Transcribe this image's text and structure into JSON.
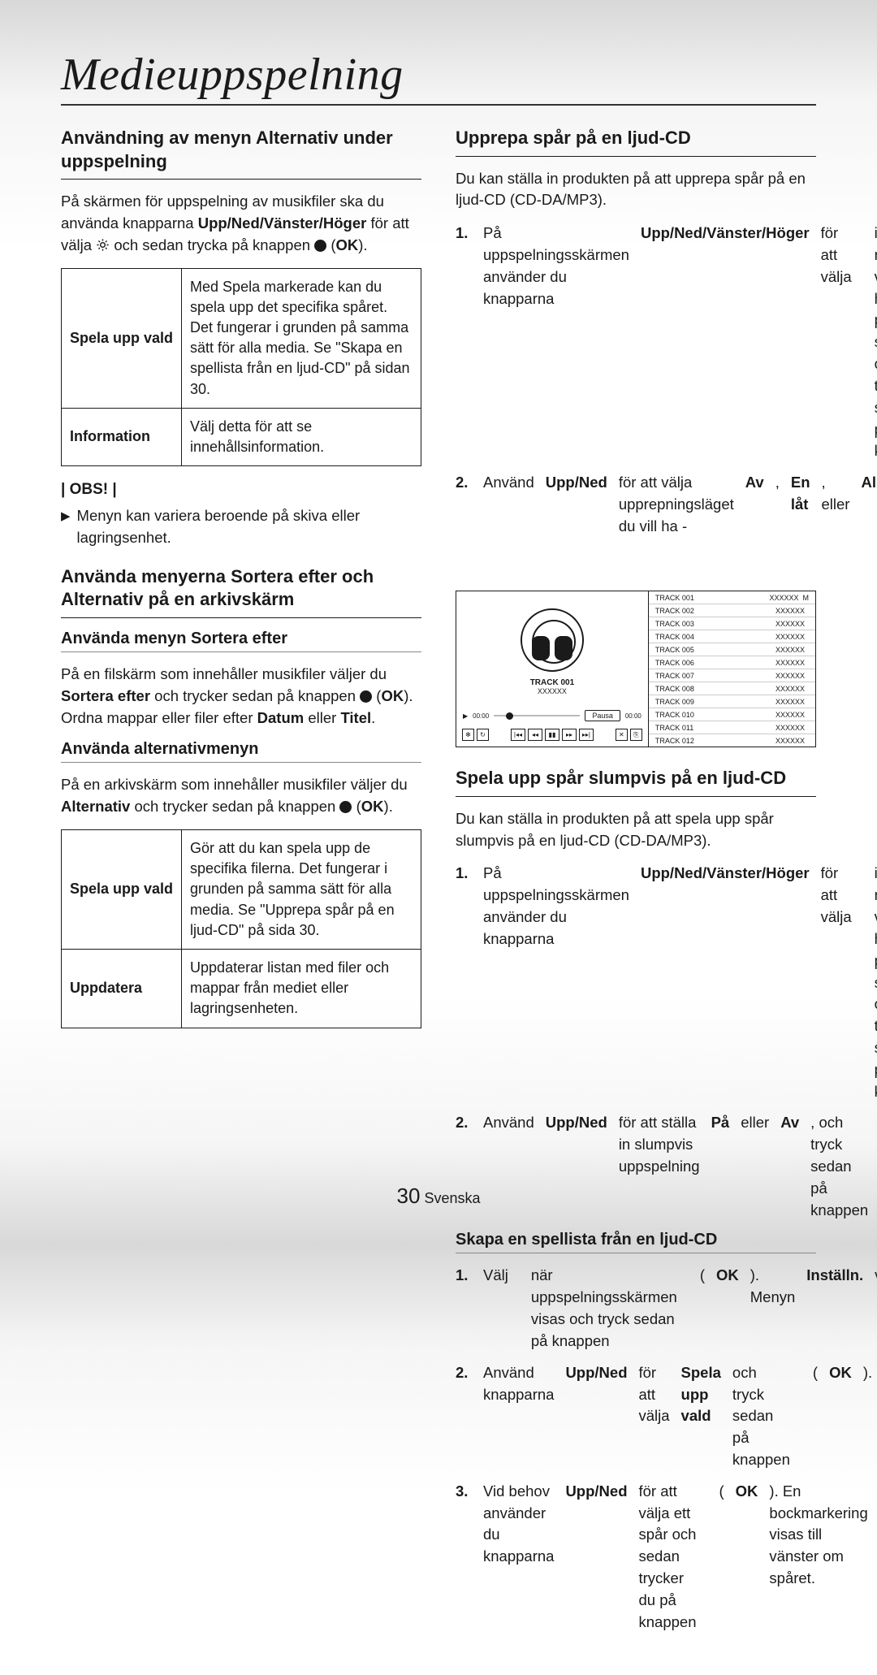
{
  "page": {
    "title": "Medieuppspelning",
    "number": "30",
    "lang_label": "Svenska"
  },
  "left": {
    "sec1_title": "Användning av menyn Alternativ under uppspelning",
    "sec1_para": "På skärmen för uppspelning av musikfiler ska du använda knapparna <b>Upp/Ned/Vänster/Höger</b> för att välja {gear} och sedan trycka på knappen {ok} (<b>OK</b>).",
    "table1": [
      {
        "k": "Spela upp vald",
        "v": "Med Spela markerade kan du spela upp det specifika spåret. Det fungerar i grunden på samma sätt för alla media. Se \"Skapa en spellista från en ljud-CD\" på sidan 30."
      },
      {
        "k": "Information",
        "v": "Välj detta för att se innehållsinformation."
      }
    ],
    "obs": "| OBS! |",
    "obs_item": "Menyn kan variera beroende på skiva eller lagringsenhet.",
    "sec2_title": "Använda menyerna Sortera efter och Alternativ på en arkivskärm",
    "sub1": "Använda menyn Sortera efter",
    "sub1_para": "På en filskärm som innehåller musikfiler väljer du <b>Sortera efter</b> och trycker sedan på knappen {ok} (<b>OK</b>). Ordna mappar eller filer efter <b>Datum</b> eller <b>Titel</b>.",
    "sub2": "Använda alternativmenyn",
    "sub2_para": "På en arkivskärm som innehåller musikfiler väljer du <b>Alternativ</b> och trycker sedan på knappen {ok} (<b>OK</b>).",
    "table2": [
      {
        "k": "Spela upp vald",
        "v": "Gör att du kan spela upp de specifika filerna. Det fungerar i grunden på samma sätt för alla media. Se \"Upprepa spår på en ljud-CD\" på sida 30."
      },
      {
        "k": "Uppdatera",
        "v": "Uppdaterar listan med filer och mappar från mediet eller lagringsenheten."
      }
    ]
  },
  "right": {
    "sec1_title": "Upprepa spår på en ljud-CD",
    "sec1_para": "Du kan ställa in produkten på att upprepa spår på en ljud-CD (CD-DA/MP3).",
    "sec1_steps": [
      "På uppspelningsskärmen använder du knapparna <b>Upp/Ned/Vänster/Höger</b> för att välja {repeat} i det nedre vänstra hörnet på skärmen och trycker sedan på knappen {ok} (<b>OK</b>).",
      "Använd <b>Upp/Ned</b> för att välja upprepningsläget du vill ha - <b>Av</b>, <b>En låt</b>, eller <b>Alla</b> - och tryck sedan på knappen {ok} (<b>OK</b>)."
    ],
    "player": {
      "now_track": "TRACK 001",
      "now_sub": "XXXXXX",
      "t_left": "00:00",
      "t_right": "00:00",
      "pause": "Pausa",
      "tracks": [
        {
          "n": "TRACK 001",
          "v": "XXXXXX",
          "m": "M"
        },
        {
          "n": "TRACK 002",
          "v": "XXXXXX",
          "m": ""
        },
        {
          "n": "TRACK 003",
          "v": "XXXXXX",
          "m": ""
        },
        {
          "n": "TRACK 004",
          "v": "XXXXXX",
          "m": ""
        },
        {
          "n": "TRACK 005",
          "v": "XXXXXX",
          "m": ""
        },
        {
          "n": "TRACK 006",
          "v": "XXXXXX",
          "m": ""
        },
        {
          "n": "TRACK 007",
          "v": "XXXXXX",
          "m": ""
        },
        {
          "n": "TRACK 008",
          "v": "XXXXXX",
          "m": ""
        },
        {
          "n": "TRACK 009",
          "v": "XXXXXX",
          "m": ""
        },
        {
          "n": "TRACK 010",
          "v": "XXXXXX",
          "m": ""
        },
        {
          "n": "TRACK 011",
          "v": "XXXXXX",
          "m": ""
        },
        {
          "n": "TRACK 012",
          "v": "XXXXXX",
          "m": ""
        }
      ]
    },
    "sec2_title": "Spela upp spår slumpvis på en ljud-CD",
    "sec2_para": "Du kan ställa in produkten på att spela upp spår slumpvis på en ljud-CD (CD-DA/MP3).",
    "sec2_steps": [
      "På uppspelningsskärmen använder du knapparna <b>Upp/Ned/Vänster/Höger</b> för att välja {shuffle} i det nedre vänstra hörnet på skärmen och trycker sedan på knappen {ok} (<b>OK</b>).",
      "Använd <b>Upp/Ned</b> för att ställa in slumpvis uppspelning <b>På</b> eller <b>Av</b>, och tryck sedan på knappen {ok} (<b>OK</b>)."
    ],
    "sec3_title": "Skapa en spellista från en ljud-CD",
    "sec3_steps": [
      "Välj {gear} när uppspelningsskärmen visas och tryck sedan på knappen {ok} (<b>OK</b>). Menyn <b>Inställn.</b> visas.",
      "Använd knapparna <b>Upp/Ned</b> för att välja <b>Spela upp vald</b> och tryck sedan på knappen {ok} (<b>OK</b>).",
      "Vid behov använder du knapparna <b>Upp/Ned</b> för att välja ett spår och sedan trycker du på knappen {ok} (<b>OK</b>). En bockmarkering visas till vänster om spåret."
    ]
  }
}
